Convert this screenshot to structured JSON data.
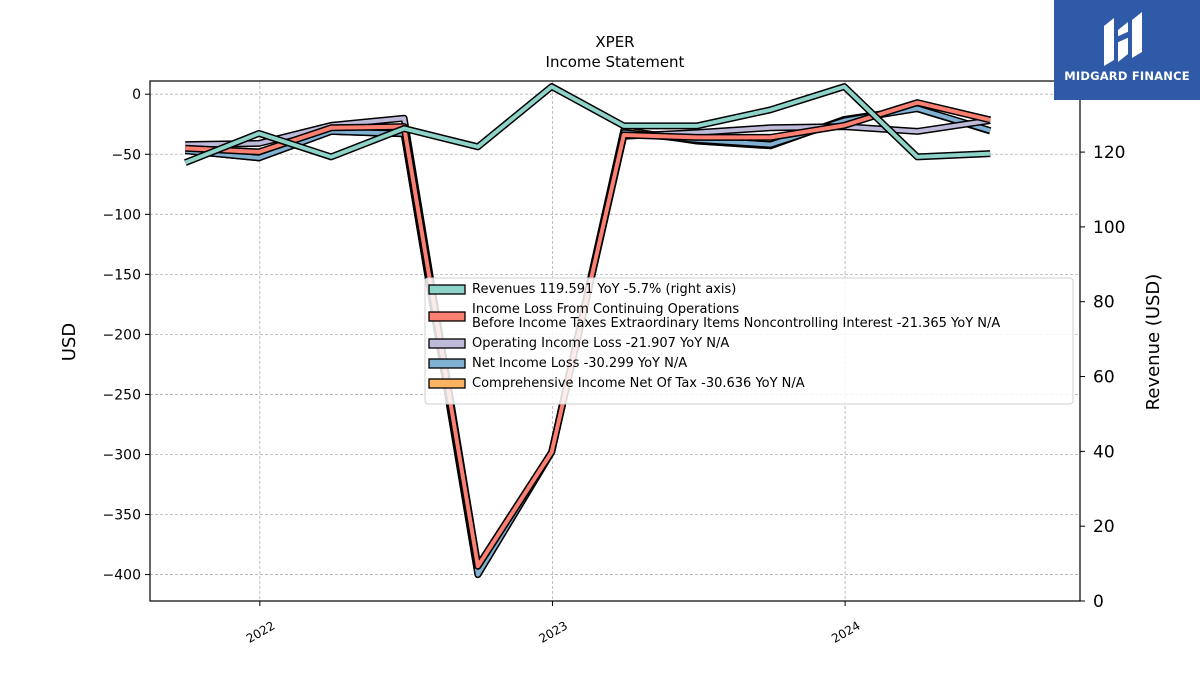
{
  "brand": {
    "name": "MIDGARD FINANCE",
    "bg": "#2f5aa8"
  },
  "chart_data": {
    "type": "line",
    "title": "XPER",
    "subtitle": "Income Statement",
    "ylabel": "USD",
    "ylabel_right": "Revenue (USD)",
    "ylim": [
      -422,
      11
    ],
    "ylim_right": [
      0,
      139
    ],
    "yticks": [
      0,
      -50,
      -100,
      -150,
      -200,
      -250,
      -300,
      -350,
      -400
    ],
    "yticks_labels": [
      "0",
      "−50",
      "−100",
      "−150",
      "−200",
      "−250",
      "−300",
      "−350",
      "−400"
    ],
    "yticks_right": [
      0,
      20,
      40,
      60,
      80,
      100,
      120
    ],
    "xlim": [
      "2021-08-17",
      "2024-10-20"
    ],
    "xticks": [
      "2022-01-01",
      "2023-01-01",
      "2024-01-01"
    ],
    "xticks_labels": [
      "2022",
      "2023",
      "2024"
    ],
    "grid": true,
    "legend_position": "center-right",
    "x": [
      "2021-09-30",
      "2021-12-31",
      "2022-03-31",
      "2022-06-30",
      "2022-09-30",
      "2022-12-31",
      "2023-03-31",
      "2023-06-30",
      "2023-09-30",
      "2023-12-31",
      "2024-03-31",
      "2024-06-30"
    ],
    "series": [
      {
        "name": "Revenues  119.591 YoY -5.7% (right axis)",
        "axis": "right",
        "color": "#8dd3c7",
        "values": [
          117.2,
          125.0,
          118.7,
          126.3,
          121.4,
          137.5,
          127.0,
          127.0,
          131.3,
          137.5,
          118.7,
          119.6
        ]
      },
      {
        "name": "Income Loss From Continuing Operations\nBefore Income Taxes Extraordinary Items Noncontrolling Interest  -21.365 YoY N/A",
        "axis": "left",
        "color": "#fb8072",
        "values": [
          -45,
          -48,
          -28,
          -27,
          -393,
          -298,
          -34,
          -36,
          -36,
          -26,
          -7,
          -21.4
        ]
      },
      {
        "name": "Operating Income Loss  -21.907 YoY N/A",
        "axis": "left",
        "color": "#bebada",
        "values": [
          -42,
          -41,
          -26,
          -20,
          -393,
          -298,
          -35,
          -32,
          -28,
          -27,
          -31,
          -21.9
        ]
      },
      {
        "name": "Net Income Loss  -30.299 YoY N/A",
        "axis": "left",
        "color": "#80b1d3",
        "values": [
          -47,
          -53,
          -31,
          -33,
          -400,
          -298,
          -32,
          -38,
          -42,
          -22,
          -12,
          -30.3
        ]
      },
      {
        "name": "Comprehensive Income Net Of Tax  -30.636 YoY N/A",
        "axis": "left",
        "color": "#fdb462",
        "values": [
          -47,
          -53,
          -31,
          -33,
          -400,
          -298,
          -30,
          -39,
          -43,
          -21,
          -12,
          -30.6
        ]
      }
    ]
  }
}
